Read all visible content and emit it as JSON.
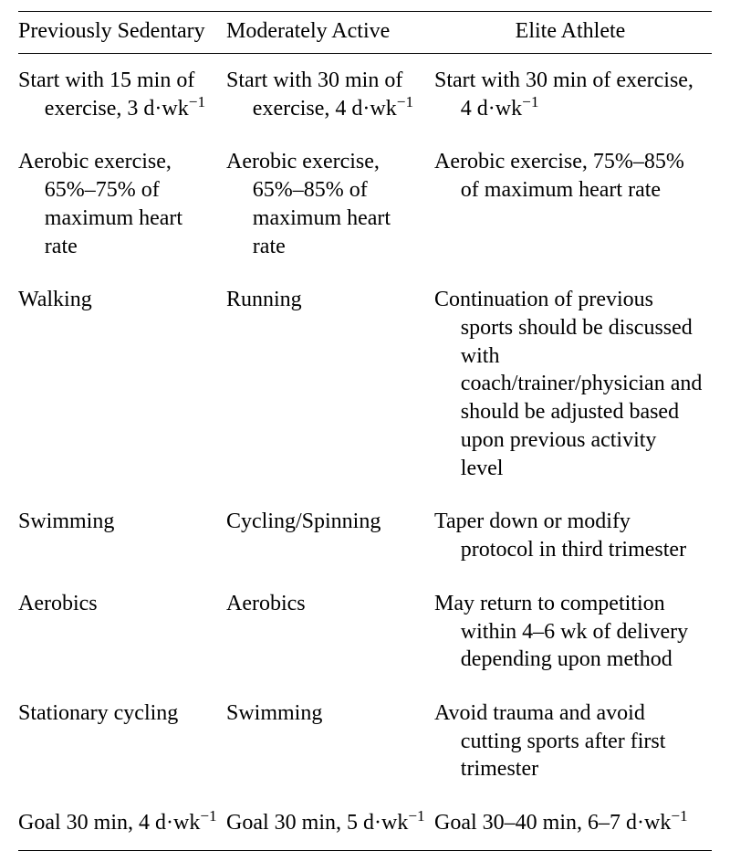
{
  "table": {
    "font_family": "Times New Roman",
    "font_size_pt": 18,
    "colors": {
      "text": "#000000",
      "background": "#ffffff",
      "rule": "#000000"
    },
    "column_widths_pct": [
      30,
      30,
      40
    ],
    "headers": {
      "col1": "Previously Sedentary",
      "col2": "Moderately Active",
      "col3": "Elite Athlete"
    },
    "rows": [
      {
        "c1": "Start with 15 min of exercise, 3 d·wk⁻¹",
        "c2": "Start with 30 min of exercise, 4 d·wk⁻¹",
        "c3": "Start with 30 min of exercise, 4 d·wk⁻¹"
      },
      {
        "c1": "Aerobic exercise, 65%–75% of maximum heart rate",
        "c2": "Aerobic exercise, 65%–85% of maximum heart rate",
        "c3": "Aerobic exercise, 75%–85% of maximum heart rate"
      },
      {
        "c1": "Walking",
        "c2": "Running",
        "c3": "Continuation of previous sports should be discussed with coach/trainer/physician and should be adjusted based upon previous activity level"
      },
      {
        "c1": "Swimming",
        "c2": "Cycling/Spinning",
        "c3": "Taper down or modify protocol in third trimester"
      },
      {
        "c1": "Aerobics",
        "c2": "Aerobics",
        "c3": "May return to competition within 4–6 wk of delivery depending upon method"
      },
      {
        "c1": "Stationary cycling",
        "c2": "Swimming",
        "c3": "Avoid trauma and avoid cutting sports after first trimester"
      },
      {
        "c1": "Goal 30 min, 4 d·wk⁻¹",
        "c2": "Goal 30 min, 5 d·wk⁻¹",
        "c3": "Goal 30–40 min, 6–7 d·wk⁻¹"
      }
    ]
  }
}
